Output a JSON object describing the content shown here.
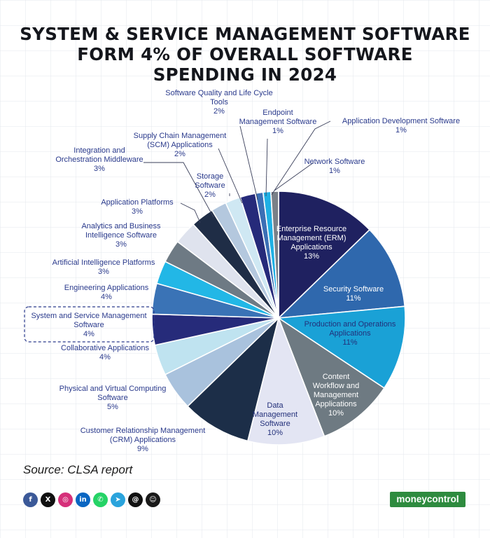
{
  "header": {
    "title_lines": [
      "SYSTEM & SERVICE MANAGEMENT SOFTWARE",
      "FORM 4% OF OVERALL SOFTWARE",
      "SPENDING IN 2024"
    ]
  },
  "chart_data": {
    "type": "pie",
    "title": "SYSTEM & SERVICE MANAGEMENT SOFTWARE FORM 4% OF OVERALL SOFTWARE SPENDING IN 2024",
    "unit": "%",
    "highlight": "System and Service Management Software",
    "slices": [
      {
        "label": "Enterprise Resource Management (ERM) Applications",
        "lines": [
          "Enterprise Resource",
          "Management (ERM)",
          "Applications"
        ],
        "value": 13,
        "display": "13%",
        "color": "#1f2160"
      },
      {
        "label": "Security Software",
        "lines": [
          "Security Software"
        ],
        "value": 11,
        "display": "11%",
        "color": "#2f68ad"
      },
      {
        "label": "Production and Operations Applications",
        "lines": [
          "Production and Operations",
          "Applications"
        ],
        "value": 11,
        "display": "11%",
        "color": "#1aa1d6"
      },
      {
        "label": "Content Workflow and Management Applications",
        "lines": [
          "Content",
          "Workflow and",
          "Management",
          "Applications"
        ],
        "value": 10,
        "display": "10%",
        "color": "#6e7a82"
      },
      {
        "label": "Data Management Software",
        "lines": [
          "Data",
          "Management",
          "Software"
        ],
        "value": 10,
        "display": "10%",
        "color": "#e3e5f3"
      },
      {
        "label": "Customer Relationship Management (CRM) Applications",
        "lines": [
          "Customer Relationship Management",
          "(CRM) Applications"
        ],
        "value": 9,
        "display": "9%",
        "color": "#1c2e48"
      },
      {
        "label": "Physical and Virtual Computing Software",
        "lines": [
          "Physical and Virtual Computing",
          "Software"
        ],
        "value": 5,
        "display": "5%",
        "color": "#a9c2dd"
      },
      {
        "label": "Collaborative Applications",
        "lines": [
          "Collaborative Applications"
        ],
        "value": 4,
        "display": "4%",
        "color": "#bfe3f0"
      },
      {
        "label": "System and Service Management Software",
        "lines": [
          "System and Service Management",
          "Software"
        ],
        "value": 4,
        "display": "4%",
        "color": "#262b7a"
      },
      {
        "label": "Engineering Applications",
        "lines": [
          "Engineering Applications"
        ],
        "value": 4,
        "display": "4%",
        "color": "#3a73b6"
      },
      {
        "label": "Artificial Intelligence Platforms",
        "lines": [
          "Artificial Intelligence Platforms"
        ],
        "value": 3,
        "display": "3%",
        "color": "#22b7e6"
      },
      {
        "label": "Analytics and Business Intelligence Software",
        "lines": [
          "Analytics and Business",
          "Intelligence Software"
        ],
        "value": 3,
        "display": "3%",
        "color": "#6e7a84"
      },
      {
        "label": "Application Platforms",
        "lines": [
          "Application Platforms"
        ],
        "value": 3,
        "display": "3%",
        "color": "#dfe3ee"
      },
      {
        "label": "Integration and Orchestration Middleware",
        "lines": [
          "Integration and",
          "Orchestration Middleware"
        ],
        "value": 3,
        "display": "3%",
        "color": "#1f2d46"
      },
      {
        "label": "Storage Software",
        "lines": [
          "Storage",
          "Software"
        ],
        "value": 2,
        "display": "2%",
        "color": "#b4c8de"
      },
      {
        "label": "Supply Chain Management (SCM) Applications",
        "lines": [
          "Supply Chain Management",
          "(SCM) Applications"
        ],
        "value": 2,
        "display": "2%",
        "color": "#cfe8f3"
      },
      {
        "label": "Software Quality and Life Cycle Tools",
        "lines": [
          "Software Quality and Life Cycle",
          "Tools"
        ],
        "value": 2,
        "display": "2%",
        "color": "#262a7a"
      },
      {
        "label": "Endpoint Management Software",
        "lines": [
          "Endpoint",
          "Management Software"
        ],
        "value": 1,
        "display": "1%",
        "color": "#3b6fb5"
      },
      {
        "label": "Application Development Software",
        "lines": [
          "Application Development Software"
        ],
        "value": 1,
        "display": "1%",
        "color": "#1fb0e4"
      },
      {
        "label": "Network Software",
        "lines": [
          "Network Software"
        ],
        "value": 1,
        "display": "1%",
        "color": "#7a8088"
      }
    ]
  },
  "footer": {
    "source": "Source: CLSA report",
    "logo": "moneycontrol"
  },
  "social": [
    {
      "name": "facebook",
      "glyph": "f",
      "color": "#3b5998"
    },
    {
      "name": "x",
      "glyph": "X",
      "color": "#111111"
    },
    {
      "name": "instagram",
      "glyph": "◎",
      "color": "#d6307a"
    },
    {
      "name": "linkedin",
      "glyph": "in",
      "color": "#0a66c2"
    },
    {
      "name": "whatsapp",
      "glyph": "✆",
      "color": "#25d366"
    },
    {
      "name": "telegram",
      "glyph": "➤",
      "color": "#2aa3dc"
    },
    {
      "name": "threads",
      "glyph": "@",
      "color": "#111111"
    },
    {
      "name": "snapchat",
      "glyph": "☺",
      "color": "#1a1a1a"
    }
  ]
}
